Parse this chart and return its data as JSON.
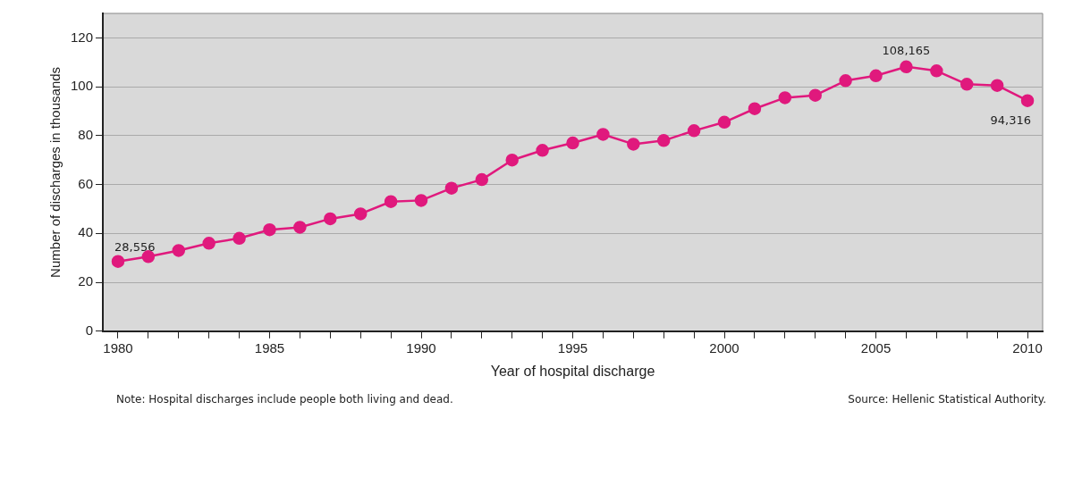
{
  "chart_data": {
    "type": "line",
    "xlabel": "Year of hospital discharge",
    "ylabel": "Number of discharges in thousands",
    "x": [
      1980,
      1981,
      1982,
      1983,
      1984,
      1985,
      1986,
      1987,
      1988,
      1989,
      1990,
      1991,
      1992,
      1993,
      1994,
      1995,
      1996,
      1997,
      1998,
      1999,
      2000,
      2001,
      2002,
      2003,
      2004,
      2005,
      2006,
      2007,
      2008,
      2009,
      2010
    ],
    "series": [
      {
        "color": "#e0197d",
        "values": [
          28.556,
          30.5,
          33,
          36,
          38,
          41.5,
          42.5,
          46,
          48,
          53,
          53.5,
          58.5,
          62,
          70,
          74,
          77,
          80.5,
          76.5,
          78,
          82,
          85.5,
          91,
          95.5,
          96.5,
          102.5,
          104.5,
          108.165,
          106.5,
          101,
          100.5,
          94.316
        ]
      }
    ],
    "xlim": [
      1979.5,
      2010.5
    ],
    "xticks": [
      1980,
      {
        "value": 1981,
        "label": null
      },
      {
        "value": 1982,
        "label": null
      },
      {
        "value": 1983,
        "label": null
      },
      {
        "value": 1984,
        "label": null
      },
      1985,
      {
        "value": 1986,
        "label": null
      },
      {
        "value": 1987,
        "label": null
      },
      {
        "value": 1988,
        "label": null
      },
      {
        "value": 1989,
        "label": null
      },
      1990,
      {
        "value": 1991,
        "label": null
      },
      {
        "value": 1992,
        "label": null
      },
      {
        "value": 1993,
        "label": null
      },
      {
        "value": 1994,
        "label": null
      },
      1995,
      {
        "value": 1996,
        "label": null
      },
      {
        "value": 1997,
        "label": null
      },
      {
        "value": 1998,
        "label": null
      },
      {
        "value": 1999,
        "label": null
      },
      2000,
      {
        "value": 2001,
        "label": null
      },
      {
        "value": 2002,
        "label": null
      },
      {
        "value": 2003,
        "label": null
      },
      {
        "value": 2004,
        "label": null
      },
      2005,
      {
        "value": 2006,
        "label": null
      },
      {
        "value": 2007,
        "label": null
      },
      {
        "value": 2008,
        "label": null
      },
      {
        "value": 2009,
        "label": null
      },
      2010
    ],
    "ylim": [
      0,
      130
    ],
    "yticks": [
      0,
      20,
      40,
      60,
      80,
      100,
      120
    ],
    "grid": "y",
    "legend": false,
    "marker": "circle",
    "line_style": "solid",
    "annotations": [
      {
        "text": "28,556",
        "x": 1980,
        "y": 28.556
      },
      {
        "text": "108,165",
        "x": 2006,
        "y": 108.165
      },
      {
        "text": "94,316",
        "x": 2010,
        "y": 94.316
      },
      "Note: Hospital discharges include people both living and dead.",
      "Source: Hellenic Statistical Authority."
    ]
  }
}
